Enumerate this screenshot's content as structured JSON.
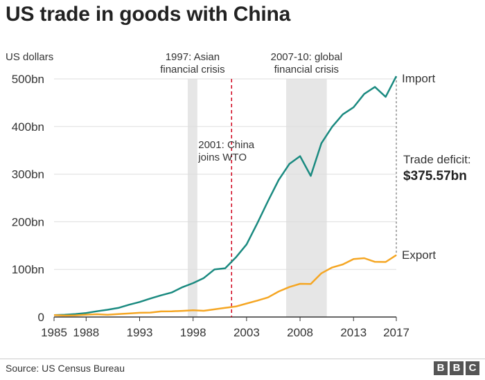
{
  "title": "US trade in goods with China",
  "source": "Source: US Census Bureau",
  "logo": [
    "B",
    "B",
    "C"
  ],
  "colors": {
    "import": "#1a8a80",
    "export": "#f5a623",
    "event_line": "#d0021b",
    "shade": "#e6e6e6",
    "axis": "#333333",
    "text": "#333333",
    "deficit_line": "#555555"
  },
  "chart_data": {
    "type": "line",
    "ylabel": "US dollars",
    "ylim": [
      0,
      500
    ],
    "xlim": [
      1985,
      2017
    ],
    "x_ticks": [
      {
        "value": 1985,
        "label": "1985"
      },
      {
        "value": 1988,
        "label": "1988"
      },
      {
        "value": 1993,
        "label": "1993"
      },
      {
        "value": 1998,
        "label": "1998"
      },
      {
        "value": 2003,
        "label": "2003"
      },
      {
        "value": 2008,
        "label": "2008"
      },
      {
        "value": 2013,
        "label": "2013"
      },
      {
        "value": 2017,
        "label": "2017"
      }
    ],
    "y_ticks": [
      {
        "value": 0,
        "label": "0"
      },
      {
        "value": 100,
        "label": "100bn"
      },
      {
        "value": 200,
        "label": "200bn"
      },
      {
        "value": 300,
        "label": "300bn"
      },
      {
        "value": 400,
        "label": "400bn"
      },
      {
        "value": 500,
        "label": "500bn"
      }
    ],
    "x": [
      1985,
      1986,
      1987,
      1988,
      1989,
      1990,
      1991,
      1992,
      1993,
      1994,
      1995,
      1996,
      1997,
      1998,
      1999,
      2000,
      2001,
      2002,
      2003,
      2004,
      2005,
      2006,
      2007,
      2008,
      2009,
      2010,
      2011,
      2012,
      2013,
      2014,
      2015,
      2016,
      2017
    ],
    "series": [
      {
        "name": "Import",
        "color_key": "import",
        "values": [
          3.9,
          4.8,
          6.3,
          8.5,
          12.0,
          15.2,
          19.0,
          25.7,
          31.5,
          38.8,
          45.5,
          51.5,
          62.6,
          71.2,
          81.8,
          100.0,
          102.3,
          125.2,
          152.4,
          196.7,
          243.5,
          287.8,
          321.4,
          337.8,
          296.4,
          364.9,
          399.4,
          425.6,
          440.4,
          468.5,
          483.2,
          462.4,
          505.6
        ]
      },
      {
        "name": "Export",
        "color_key": "export",
        "values": [
          3.9,
          3.1,
          3.5,
          5.0,
          5.8,
          4.8,
          6.3,
          7.4,
          8.8,
          9.3,
          11.8,
          12.0,
          12.9,
          14.2,
          13.1,
          16.2,
          19.2,
          22.1,
          28.4,
          34.4,
          41.2,
          53.7,
          62.9,
          69.7,
          69.5,
          91.9,
          104.1,
          110.5,
          121.7,
          123.6,
          115.9,
          115.6,
          130.0
        ]
      }
    ],
    "shaded_periods": [
      {
        "label_lines": [
          "1997: Asian",
          "financial crisis"
        ],
        "start": 1997.5,
        "end": 1998.4
      },
      {
        "label_lines": [
          "2007-10: global",
          "financial crisis"
        ],
        "start": 2006.7,
        "end": 2010.5
      }
    ],
    "events": [
      {
        "label_lines": [
          "2001: China",
          "joins WTO"
        ],
        "x": 2001.6
      }
    ],
    "annotations": {
      "import_label": "Import",
      "export_label": "Export",
      "deficit_label": "Trade deficit:",
      "deficit_value": "$375.57bn"
    }
  }
}
